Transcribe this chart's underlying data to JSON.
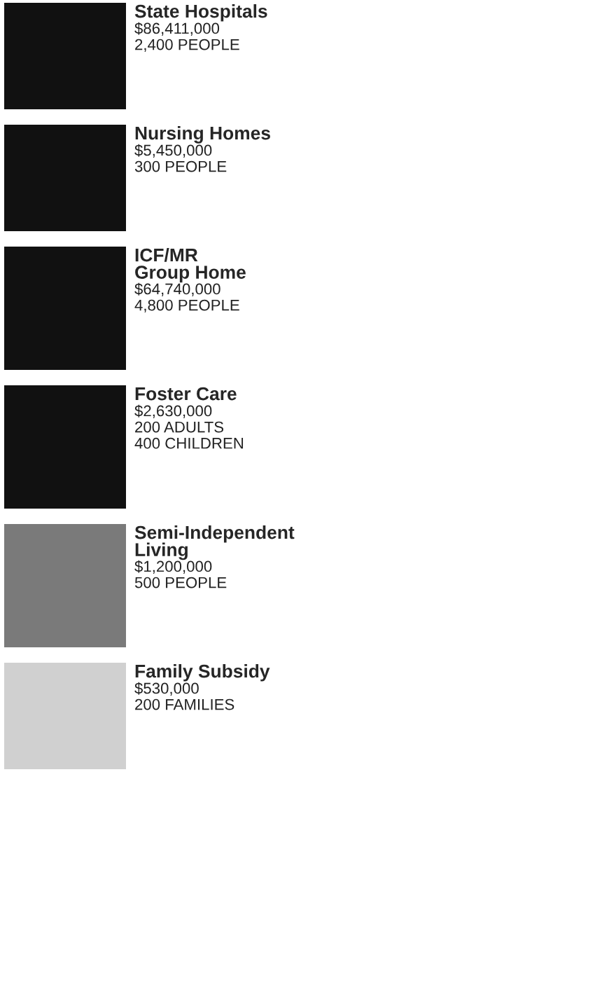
{
  "chart_data": {
    "type": "other",
    "categories": [
      "State Hospitals",
      "Nursing Homes",
      "ICF/MR\nGroup Home",
      "Foster Care",
      "Semi-Independent\nLiving",
      "Family Subsidy"
    ],
    "colors": [
      "#111111",
      "#111111",
      "#111111",
      "#111111",
      "#7a7a7a",
      "#d0d0d0"
    ],
    "series": [
      {
        "values": [
          86411000,
          5450000,
          64740000,
          2630000,
          1200000,
          530000
        ],
        "value_labels": [
          "$86,411,000",
          "$5,450,000",
          "$64,740,000",
          "$2,630,000",
          "$1,200,000",
          "$530,000"
        ]
      },
      {
        "values": [
          2400,
          300,
          4800,
          200,
          500,
          200
        ],
        "value_labels": [
          "2,400 PEOPLE",
          "300 PEOPLE",
          "4,800 PEOPLE",
          "200 ADULTS",
          "500 PEOPLE",
          "200 FAMILIES"
        ]
      },
      {
        "values": [
          null,
          null,
          null,
          400,
          null,
          null
        ],
        "value_labels": [
          null,
          null,
          null,
          "400 CHILDREN",
          null,
          null
        ]
      }
    ]
  }
}
